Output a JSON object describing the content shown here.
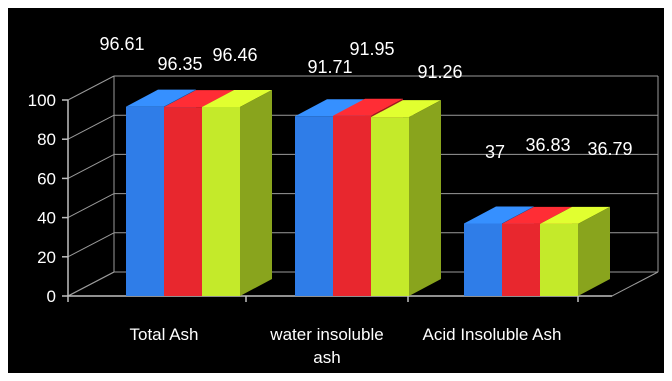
{
  "chart_data": {
    "type": "bar",
    "categories": [
      "Total Ash",
      "water insoluble ash",
      "Acid Insoluble Ash"
    ],
    "series": [
      {
        "values": [
          96.61,
          91.71,
          37
        ],
        "color": "#2f7de8"
      },
      {
        "values": [
          96.35,
          91.95,
          36.83
        ],
        "color": "#e8272e"
      },
      {
        "values": [
          96.46,
          91.26,
          36.79
        ],
        "color": "#c4ea2a"
      }
    ],
    "data_labels": [
      [
        "96.61",
        "91.71",
        "37"
      ],
      [
        "96.35",
        "91.95",
        "36.83"
      ],
      [
        "96.46",
        "91.26",
        "36.79"
      ]
    ],
    "yticks": [
      "0",
      "20",
      "40",
      "60",
      "80",
      "100"
    ],
    "ylim": [
      0,
      100
    ],
    "grid": true,
    "background": "#000000",
    "style": "3d-clustered-column"
  }
}
